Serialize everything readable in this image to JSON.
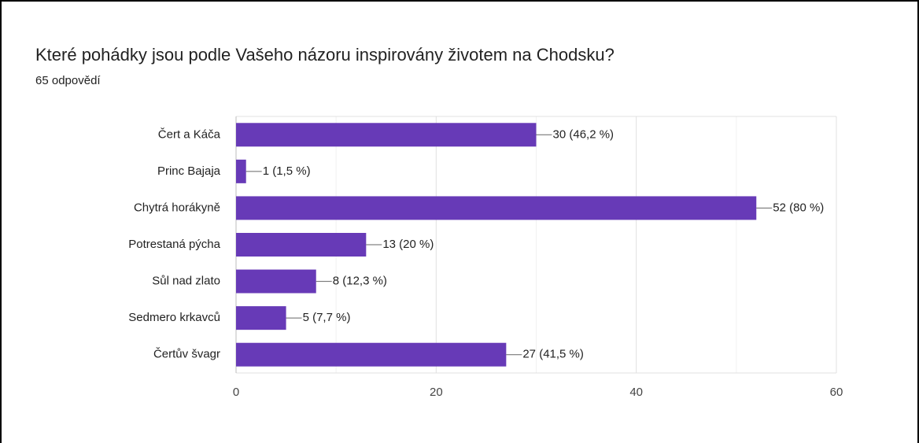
{
  "chart_data": {
    "type": "hbar",
    "title": "Které pohádky jsou podle Vašeho názoru inspirovány životem na Chodsku?",
    "subtitle": "65 odpovědí",
    "categories": [
      "Čert a Káča",
      "Princ Bajaja",
      "Chytrá horákyně",
      "Potrestaná pýcha",
      "Sůl nad zlato",
      "Sedmero krkavců",
      "Čertův švagr"
    ],
    "values": [
      30,
      1,
      52,
      13,
      8,
      5,
      27
    ],
    "value_labels": [
      "30 (46,2 %)",
      "1 (1,5 %)",
      "52 (80 %)",
      "13 (20 %)",
      "8 (12,3 %)",
      "5 (7,7 %)",
      "27 (41,5 %)"
    ],
    "color": "#673ab7",
    "xlim": [
      0,
      60
    ],
    "xticks": [
      0,
      20,
      40,
      60
    ],
    "minor_xticks": [
      10,
      30,
      50
    ],
    "grid": true
  }
}
